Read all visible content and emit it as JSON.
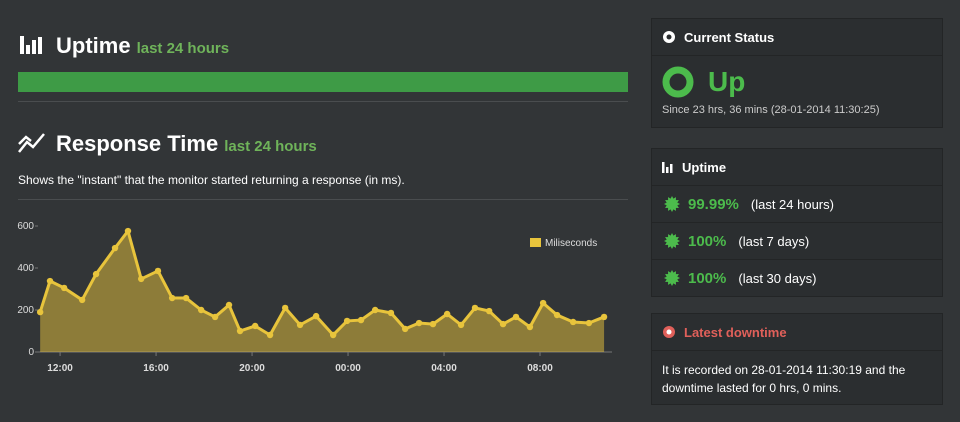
{
  "uptime": {
    "title": "Uptime",
    "period": "last 24 hours"
  },
  "response_time": {
    "title": "Response Time",
    "period": "last 24 hours",
    "description": "Shows the \"instant\" that the monitor started returning a response (in ms)."
  },
  "chart_data": {
    "type": "line",
    "legend": "top-right",
    "x": [
      11.17,
      11.58,
      12.17,
      12.92,
      13.5,
      14.29,
      14.83,
      15.38,
      16.08,
      16.67,
      17.25,
      17.88,
      18.46,
      19.04,
      19.5,
      20.13,
      20.75,
      21.38,
      22,
      22.67,
      23.38,
      23.96,
      24.54,
      25.13,
      25.79,
      26.38,
      26.96,
      27.54,
      28.13,
      28.71,
      29.29,
      29.88,
      30.46,
      31,
      31.58,
      32.13,
      32.71,
      33.38,
      34.04,
      34.67
    ],
    "series": [
      {
        "name": "Miliseconds",
        "color": "#e8c43c",
        "values": [
          190,
          338,
          305,
          248,
          371,
          495,
          576,
          348,
          386,
          257,
          257,
          200,
          167,
          224,
          100,
          124,
          81,
          210,
          129,
          171,
          81,
          148,
          152,
          200,
          186,
          110,
          138,
          133,
          181,
          129,
          210,
          195,
          133,
          167,
          119,
          233,
          176,
          143,
          138,
          167
        ]
      }
    ],
    "xlim": [
      11.08,
      35
    ],
    "xticks": [
      {
        "value": 12,
        "label": "12:00"
      },
      {
        "value": 16,
        "label": "16:00"
      },
      {
        "value": 20,
        "label": "20:00"
      },
      {
        "value": 24,
        "label": "00:00"
      },
      {
        "value": 28,
        "label": "04:00"
      },
      {
        "value": 32,
        "label": "08:00"
      }
    ],
    "ylim": [
      0,
      600
    ],
    "yticks": [
      0,
      200,
      400,
      600
    ]
  },
  "current_status": {
    "title": "Current Status",
    "status": "Up",
    "since": "Since 23 hrs, 36 mins (28-01-2014 11:30:25)"
  },
  "uptime_panel": {
    "title": "Uptime",
    "rows": [
      {
        "value": "99.99%",
        "period": "(last 24 hours)"
      },
      {
        "value": "100%",
        "period": "(last 7 days)"
      },
      {
        "value": "100%",
        "period": "(last 30 days)"
      }
    ]
  },
  "latest_downtime": {
    "title": "Latest downtime",
    "text": "It is recorded on 28-01-2014 11:30:19 and the downtime lasted for 0 hrs, 0 mins."
  }
}
